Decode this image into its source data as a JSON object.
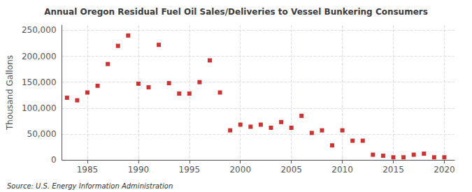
{
  "chart_data": {
    "type": "scatter",
    "title": "Annual Oregon Residual Fuel Oil Sales/Deliveries to Vessel Bunkering Consumers",
    "ylabel": "Thousand Gallons",
    "annotations": [
      "Source: U.S. Energy Information Administration"
    ],
    "x": [
      1983,
      1984,
      1985,
      1986,
      1987,
      1988,
      1989,
      1990,
      1991,
      1992,
      1993,
      1994,
      1995,
      1996,
      1997,
      1998,
      1999,
      2000,
      2001,
      2002,
      2003,
      2004,
      2005,
      2006,
      2007,
      2008,
      2009,
      2010,
      2011,
      2012,
      2013,
      2014,
      2015,
      2016,
      2017,
      2018,
      2019,
      2020
    ],
    "values": [
      120000,
      115000,
      130000,
      143000,
      185000,
      220000,
      240000,
      147000,
      140000,
      222000,
      148000,
      128000,
      128000,
      150000,
      192000,
      130000,
      57000,
      68000,
      64000,
      68000,
      62000,
      73000,
      62000,
      85000,
      52000,
      57000,
      28000,
      57000,
      37000,
      37000,
      10000,
      8000,
      5000,
      5000,
      10000,
      12000,
      5000,
      5000
    ],
    "color": "#c00000",
    "marker": "square",
    "xlim": [
      1982.5,
      2021
    ],
    "xticks": [
      1985,
      1990,
      1995,
      2000,
      2005,
      2010,
      2015,
      2020
    ],
    "ylim": [
      0,
      260000
    ],
    "yticks": [
      0,
      {
        "value": 50000,
        "label": "50,000"
      },
      {
        "value": 100000,
        "label": "100,000"
      },
      {
        "value": 150000,
        "label": "150,000"
      },
      {
        "value": 200000,
        "label": "200,000"
      },
      {
        "value": 250000,
        "label": "250,000"
      }
    ],
    "grid": true
  }
}
